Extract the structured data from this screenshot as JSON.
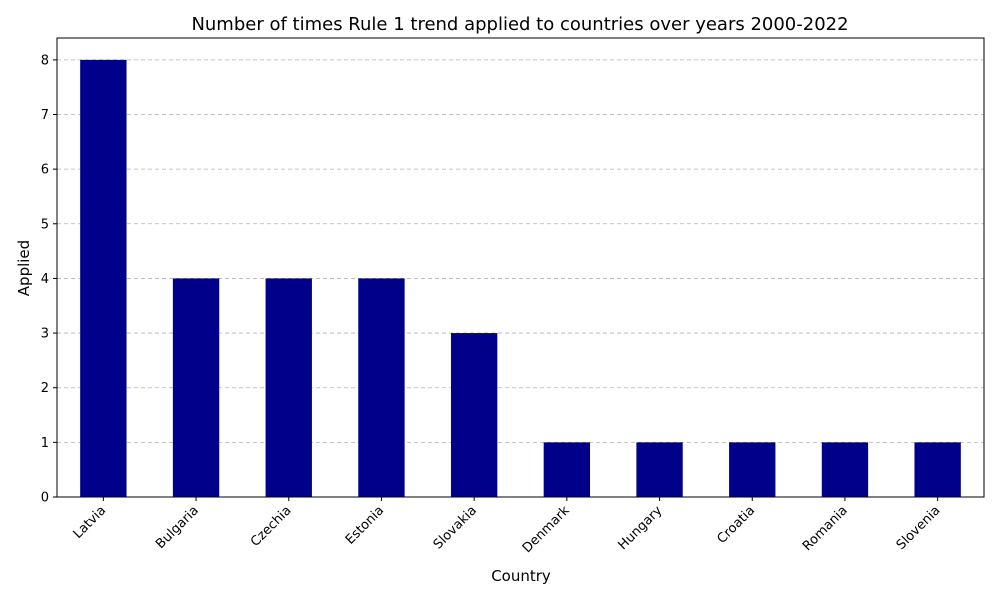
{
  "chart_data": {
    "type": "bar",
    "title": "Number of times Rule 1 trend applied to countries over years 2000-2022",
    "xlabel": "Country",
    "ylabel": "Applied",
    "categories": [
      "Latvia",
      "Bulgaria",
      "Czechia",
      "Estonia",
      "Slovakia",
      "Denmark",
      "Hungary",
      "Croatia",
      "Romania",
      "Slovenia"
    ],
    "values": [
      8,
      4,
      4,
      4,
      3,
      1,
      1,
      1,
      1,
      1
    ],
    "ylim": [
      0,
      8.4
    ],
    "yticks": [
      0,
      1,
      2,
      3,
      4,
      5,
      6,
      7,
      8
    ],
    "grid": "y-dashed",
    "bar_color": "#00008b",
    "xtick_rotation": 45
  }
}
